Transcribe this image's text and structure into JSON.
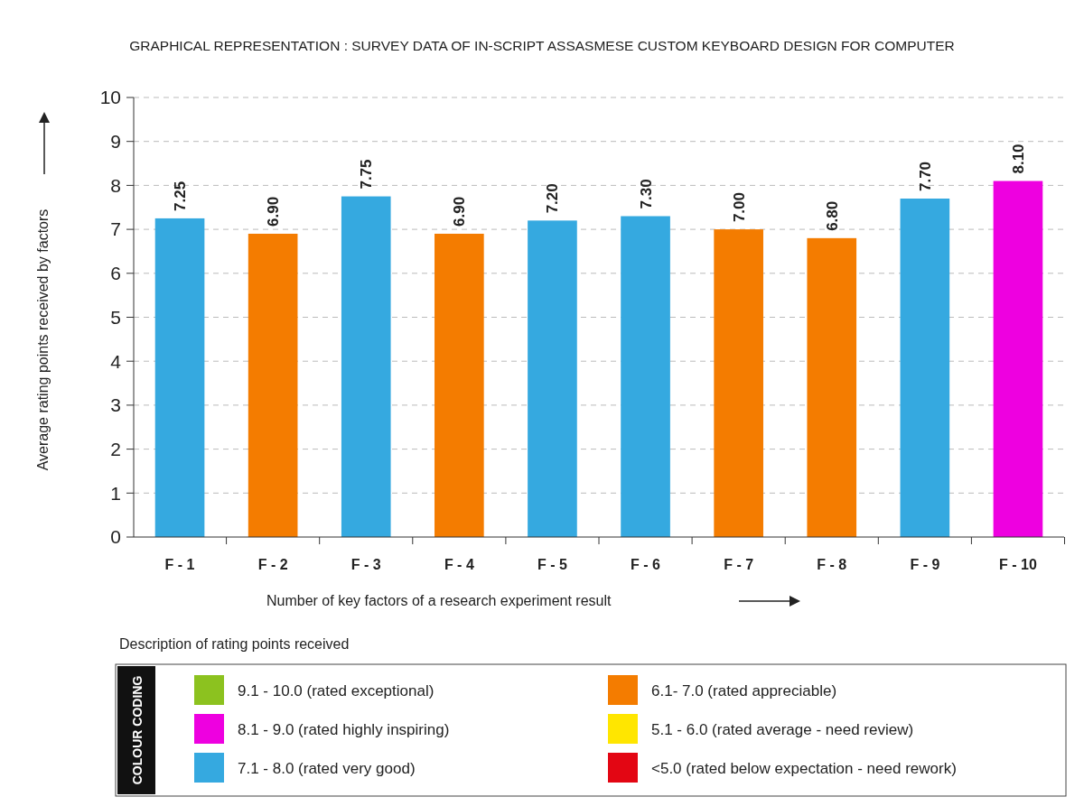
{
  "chart_data": {
    "type": "bar",
    "title": "GRAPHICAL REPRESENTATION : SURVEY DATA OF IN-SCRIPT ASSASMESE CUSTOM KEYBOARD DESIGN FOR COMPUTER",
    "xlabel": "Number of key factors of a research experiment result",
    "ylabel": "Average rating points received by factors",
    "legend_title": "COLOUR CODING",
    "annotations": [
      "Description of rating points received"
    ],
    "categories": [
      "F - 1",
      "F - 2",
      "F - 3",
      "F - 4",
      "F - 5",
      "F - 6",
      "F - 7",
      "F - 8",
      "F - 9",
      "F - 10"
    ],
    "series": [
      {
        "name": "9.1  - 10.0 (rated exceptional)",
        "color": "#8cc21f",
        "values": [
          null,
          null,
          null,
          null,
          null,
          null,
          null,
          null,
          null,
          null
        ],
        "value_labels": [
          null,
          null,
          null,
          null,
          null,
          null,
          null,
          null,
          null,
          null
        ]
      },
      {
        "name": "8.1 - 9.0 (rated highly inspiring)",
        "color": "#ee00e0",
        "values": [
          null,
          null,
          null,
          null,
          null,
          null,
          null,
          null,
          null,
          8.1
        ],
        "value_labels": [
          null,
          null,
          null,
          null,
          null,
          null,
          null,
          null,
          null,
          "8.10"
        ]
      },
      {
        "name": "7.1  - 8.0 (rated very good)",
        "color": "#35a9e0",
        "values": [
          7.25,
          null,
          7.75,
          null,
          7.2,
          7.3,
          null,
          null,
          7.7,
          null
        ],
        "value_labels": [
          "7.25",
          null,
          "7.75",
          null,
          "7.20",
          "7.30",
          null,
          null,
          "7.70",
          null
        ]
      },
      {
        "name": "6.1-  7.0 (rated appreciable)",
        "color": "#f47c00",
        "values": [
          null,
          6.9,
          null,
          6.9,
          null,
          null,
          7.0,
          6.8,
          null,
          null
        ],
        "value_labels": [
          null,
          "6.90",
          null,
          "6.90",
          null,
          null,
          "7.00",
          "6.80",
          null,
          null
        ]
      },
      {
        "name": "5.1 - 6.0 (rated average - need review)",
        "color": "#ffe600",
        "values": [
          null,
          null,
          null,
          null,
          null,
          null,
          null,
          null,
          null,
          null
        ],
        "value_labels": [
          null,
          null,
          null,
          null,
          null,
          null,
          null,
          null,
          null,
          null
        ]
      },
      {
        "name": "<5.0 (rated below expectation - need rework)",
        "color": "#e30613",
        "values": [
          null,
          null,
          null,
          null,
          null,
          null,
          null,
          null,
          null,
          null
        ],
        "value_labels": [
          null,
          null,
          null,
          null,
          null,
          null,
          null,
          null,
          null,
          null
        ]
      }
    ],
    "ylim": [
      0,
      10
    ],
    "yticks": [
      0,
      1,
      2,
      3,
      4,
      5,
      6,
      7,
      8,
      9,
      10
    ],
    "grid": "y",
    "legend": "bottom"
  }
}
